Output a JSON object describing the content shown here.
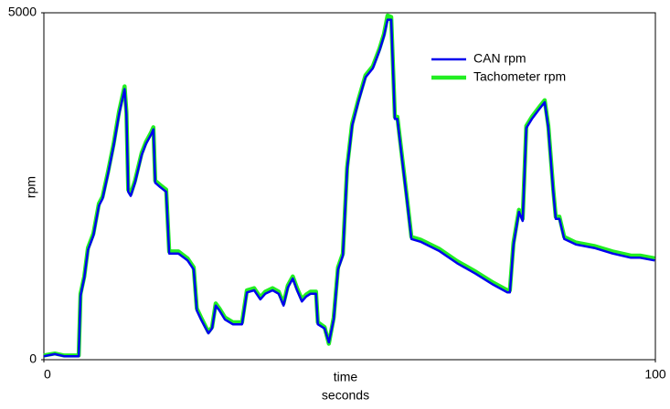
{
  "chart_data": {
    "type": "line",
    "ylabel": "rpm",
    "xlabel": "time",
    "xunit": "seconds",
    "xlim": [
      0,
      100
    ],
    "xticks": [
      0,
      100
    ],
    "ylim": [
      0,
      5000
    ],
    "yticks": [
      0,
      5000
    ],
    "grid": false,
    "legend": "upper right",
    "x": [
      0,
      1.8,
      3.3,
      4.8,
      5.7,
      6.0,
      6.6,
      7.2,
      8.1,
      9.0,
      9.6,
      10.5,
      11.4,
      12.3,
      13.2,
      13.5,
      13.8,
      14.2,
      14.9,
      16.0,
      16.7,
      17.5,
      17.9,
      18.2,
      19.0,
      20.0,
      20.5,
      22.0,
      23.5,
      24.5,
      25.0,
      25.7,
      26.9,
      27.5,
      28.1,
      28.7,
      29.6,
      30.9,
      32.4,
      33.2,
      34.4,
      35.4,
      36.2,
      37.4,
      38.4,
      39.2,
      39.9,
      40.7,
      41.4,
      42.2,
      42.9,
      43.6,
      44.5,
      44.8,
      45.9,
      46.6,
      47.4,
      48.1,
      48.9,
      49.6,
      50.4,
      51.4,
      52.6,
      53.8,
      54.9,
      55.6,
      56.2,
      56.8,
      57.4,
      57.8,
      58.6,
      59.3,
      60.1,
      61.6,
      64.6,
      67.6,
      70.6,
      73.5,
      75.8,
      76.2,
      76.8,
      77.7,
      78.3,
      78.9,
      79.8,
      81.0,
      81.9,
      82.5,
      83.3,
      83.7,
      84.3,
      85.1,
      87.0,
      90.0,
      93.0,
      96.0,
      97.5,
      99.9
    ],
    "series": [
      {
        "name": "Tachometer rpm",
        "color": "#22ee22",
        "values": [
          60,
          90,
          60,
          60,
          60,
          950,
          1200,
          1610,
          1820,
          2250,
          2350,
          2710,
          3110,
          3580,
          3940,
          3570,
          2450,
          2390,
          2580,
          2980,
          3140,
          3270,
          3350,
          2580,
          2520,
          2450,
          1560,
          1560,
          1460,
          1330,
          740,
          610,
          400,
          470,
          810,
          740,
          610,
          540,
          540,
          1000,
          1030,
          900,
          980,
          1030,
          980,
          810,
          1070,
          1200,
          1030,
          870,
          940,
          980,
          980,
          540,
          470,
          230,
          610,
          1330,
          1530,
          2780,
          3400,
          3740,
          4100,
          4230,
          4490,
          4690,
          4960,
          4940,
          3500,
          3500,
          2910,
          2390,
          1770,
          1730,
          1600,
          1420,
          1270,
          1110,
          1000,
          1000,
          1690,
          2160,
          2030,
          3370,
          3500,
          3640,
          3740,
          3370,
          2450,
          2060,
          2060,
          1770,
          1690,
          1640,
          1560,
          1500,
          1500,
          1460
        ]
      },
      {
        "name": "CAN rpm",
        "color": "#0000ee",
        "values": [
          50,
          80,
          50,
          50,
          50,
          920,
          1180,
          1580,
          1790,
          2220,
          2320,
          2680,
          3080,
          3540,
          3900,
          3540,
          2420,
          2360,
          2550,
          2950,
          3110,
          3240,
          3320,
          2550,
          2490,
          2420,
          1530,
          1530,
          1430,
          1300,
          710,
          580,
          380,
          450,
          780,
          710,
          580,
          510,
          510,
          970,
          1000,
          870,
          950,
          1000,
          950,
          780,
          1040,
          1170,
          1000,
          840,
          910,
          950,
          950,
          510,
          450,
          250,
          580,
          1300,
          1500,
          2750,
          3370,
          3710,
          4070,
          4200,
          4460,
          4660,
          4900,
          4900,
          3470,
          3470,
          2880,
          2360,
          1740,
          1700,
          1570,
          1390,
          1240,
          1080,
          970,
          970,
          1660,
          2130,
          2000,
          3340,
          3470,
          3610,
          3710,
          3340,
          2420,
          2030,
          2030,
          1740,
          1660,
          1610,
          1530,
          1470,
          1470,
          1430
        ]
      }
    ]
  }
}
